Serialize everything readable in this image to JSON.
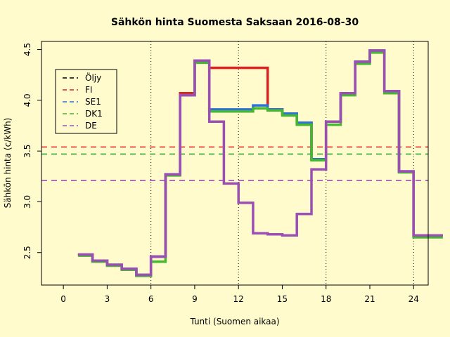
{
  "chart_data": {
    "type": "line",
    "title": "Sähkön hinta Suomesta Saksaan 2016-08-30",
    "xlabel": "Tunti (Suomen aikaa)",
    "ylabel": "Sähkön hinta (c/kWh)",
    "xlim": [
      -1.5,
      25
    ],
    "ylim": [
      2.18,
      4.58
    ],
    "x_ticks": [
      0,
      3,
      6,
      9,
      12,
      15,
      18,
      21,
      24
    ],
    "y_ticks": [
      2.5,
      3.0,
      3.5,
      4.0,
      4.5
    ],
    "x_gridlines": [
      6,
      12,
      18,
      24
    ],
    "legend_position": "top-left",
    "step": true,
    "hours": [
      1,
      2,
      3,
      4,
      5,
      6,
      7,
      8,
      9,
      10,
      11,
      12,
      13,
      14,
      15,
      16,
      17,
      18,
      19,
      20,
      21,
      22,
      23,
      24,
      25
    ],
    "series": [
      {
        "name": "FI",
        "color": "#DF2020",
        "values": [
          2.48,
          2.42,
          2.38,
          2.34,
          2.28,
          2.46,
          3.27,
          4.07,
          4.39,
          4.32,
          4.32,
          4.32,
          4.32,
          3.91,
          3.87,
          3.78,
          3.42,
          3.79,
          4.07,
          4.38,
          4.49,
          4.09,
          3.3,
          2.67,
          2.67
        ]
      },
      {
        "name": "SE1",
        "color": "#2E6FD8",
        "values": [
          2.48,
          2.42,
          2.38,
          2.34,
          2.28,
          2.46,
          3.27,
          4.05,
          4.39,
          3.91,
          3.91,
          3.91,
          3.95,
          3.91,
          3.87,
          3.78,
          3.42,
          3.79,
          4.07,
          4.38,
          4.49,
          4.09,
          3.3,
          2.67,
          2.67
        ]
      },
      {
        "name": "DK1",
        "color": "#44B830",
        "values": [
          2.47,
          2.41,
          2.37,
          2.33,
          2.27,
          2.41,
          3.26,
          4.05,
          4.37,
          3.89,
          3.89,
          3.89,
          3.92,
          3.9,
          3.85,
          3.76,
          3.41,
          3.76,
          4.05,
          4.36,
          4.47,
          4.07,
          3.29,
          2.65,
          2.65
        ]
      },
      {
        "name": "DE",
        "color": "#9B4FB5",
        "values": [
          2.48,
          2.42,
          2.38,
          2.34,
          2.28,
          2.46,
          3.27,
          4.05,
          4.39,
          3.79,
          3.18,
          2.99,
          2.69,
          2.68,
          2.67,
          2.88,
          3.32,
          3.79,
          4.07,
          4.38,
          4.49,
          4.09,
          3.3,
          2.67,
          2.67
        ]
      }
    ],
    "reference_lines": [
      {
        "name": "FI",
        "value": 3.54,
        "color": "#DF2020"
      },
      {
        "name": "SE1",
        "value": 3.47,
        "color": "#2E6FD8"
      },
      {
        "name": "DK1",
        "value": 3.47,
        "color": "#44B830"
      },
      {
        "name": "DE",
        "value": 3.21,
        "color": "#9B4FB5"
      }
    ],
    "legend": [
      {
        "label": "Öljy",
        "color": "#000000"
      },
      {
        "label": "FI",
        "color": "#DF2020"
      },
      {
        "label": "SE1",
        "color": "#2E6FD8"
      },
      {
        "label": "DK1",
        "color": "#44B830"
      },
      {
        "label": "DE",
        "color": "#9B4FB5"
      }
    ]
  }
}
